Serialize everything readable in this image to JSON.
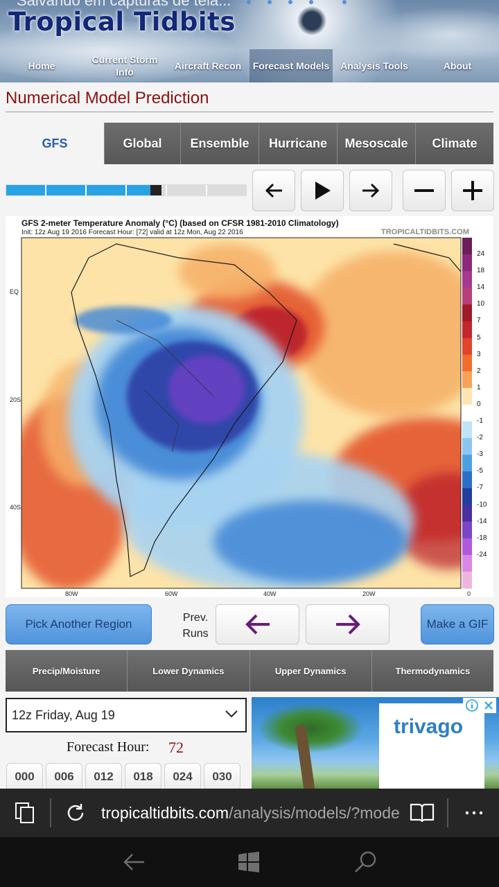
{
  "header": {
    "overlay_text": "Salvando em capturas de tela...",
    "site_title": "Tropical Tidbits"
  },
  "nav": {
    "items": [
      {
        "label": "Home",
        "active": false
      },
      {
        "label": "Current Storm Info",
        "active": false
      },
      {
        "label": "Aircraft Recon",
        "active": false
      },
      {
        "label": "Forecast Models",
        "active": true
      },
      {
        "label": "Analysis Tools",
        "active": false
      },
      {
        "label": "About",
        "active": false
      }
    ]
  },
  "page_title": "Numerical Model Prediction",
  "model_tabs": [
    {
      "label": "GFS",
      "active": true
    },
    {
      "label": "Global",
      "active": false
    },
    {
      "label": "Ensemble",
      "active": false
    },
    {
      "label": "Hurricane",
      "active": false
    },
    {
      "label": "Mesoscale",
      "active": false
    },
    {
      "label": "Climate",
      "active": false
    }
  ],
  "animation": {
    "progress_fraction": 0.6,
    "controls": [
      "arrow-left-icon",
      "play-icon",
      "arrow-right-icon",
      "minus-icon",
      "plus-icon"
    ]
  },
  "map": {
    "title": "GFS 2-meter Temperature Anomaly (°C) (based on CFSR 1981-2010 Climatology)",
    "subtitle": "Init: 12z Aug 19 2016   Forecast Hour: [72]   valid at 12z Mon, Aug 22 2016",
    "watermark": "TROPICALTIDBITS.COM",
    "lat_labels": [
      "EQ",
      "20S",
      "40S"
    ],
    "lon_labels": [
      "80W",
      "60W",
      "40W",
      "20W",
      "0"
    ],
    "colorbar_labels": [
      "24",
      "18",
      "14",
      "10",
      "7",
      "5",
      "3",
      "2",
      "1",
      "0",
      "-1",
      "-2",
      "-3",
      "-5",
      "-7",
      "-10",
      "-14",
      "-18",
      "-24"
    ],
    "colors": {
      "warm_dark": "#b71c2c",
      "warm_mid": "#e4572e",
      "warm_light": "#f6b26b",
      "neutral": "#fff4c2",
      "cool_light": "#a7d3f2",
      "cool_mid": "#3f86d6",
      "cool_dark": "#2f3fa6",
      "cool_extreme": "#6a3fc4"
    }
  },
  "actions": {
    "pick_region": "Pick Another Region",
    "prev_runs": "Prev. Runs",
    "make_gif": "Make a GIF"
  },
  "categories": [
    "Precip/Moisture",
    "Lower Dynamics",
    "Upper Dynamics",
    "Thermodynamics"
  ],
  "run_select": {
    "value": "12z Friday, Aug 19"
  },
  "forecast_hour": {
    "label": "Forecast Hour:",
    "value": "72"
  },
  "hour_buttons": [
    "000",
    "006",
    "012",
    "018",
    "024",
    "030"
  ],
  "ad": {
    "brand": "trivago"
  },
  "browser": {
    "url_host": "tropicaltidbits.com",
    "url_path": "/analysis/models/?mode"
  }
}
